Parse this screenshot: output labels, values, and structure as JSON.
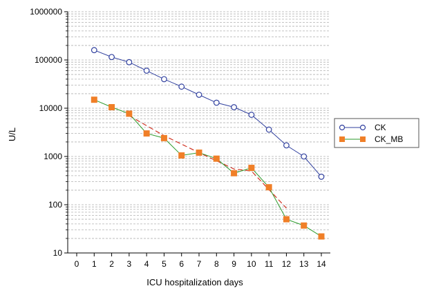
{
  "chart_data": {
    "type": "line",
    "xlabel": "ICU hospitalization days",
    "ylabel": "U/L",
    "yscale": "log",
    "xlim": [
      0,
      14
    ],
    "ylim": [
      10,
      1000000
    ],
    "x_ticks": [
      "0",
      "1",
      "2",
      "3",
      "4",
      "5",
      "6",
      "7",
      "8",
      "9",
      "10",
      "11",
      "12",
      "13",
      "14"
    ],
    "y_ticks": [
      "10",
      "100",
      "1000",
      "10000",
      "100000",
      "1000000"
    ],
    "grid": "dashed horizontal gridlines at log minor ticks",
    "legend_position": "right",
    "series": [
      {
        "name": "CK",
        "color": "#2f3f9e",
        "marker": "circle",
        "x": [
          1,
          2,
          3,
          4,
          5,
          6,
          7,
          8,
          9,
          10,
          11,
          12,
          13,
          14
        ],
        "values": [
          160000,
          115000,
          90000,
          60000,
          40000,
          28000,
          19000,
          13000,
          10500,
          7300,
          3600,
          1700,
          1000,
          380
        ]
      },
      {
        "name": "CK_MB",
        "color": "#2a9a2a",
        "marker_color": "#f07f28",
        "marker": "square",
        "x": [
          1,
          2,
          3,
          4,
          5,
          6,
          7,
          8,
          9,
          10,
          11,
          12,
          13,
          14
        ],
        "values": [
          15000,
          10500,
          7700,
          3000,
          2400,
          1050,
          1200,
          900,
          450,
          580,
          230,
          50,
          37,
          22
        ]
      }
    ],
    "trend_lines": [
      {
        "color": "#d03020",
        "style": "dashed",
        "x": [
          3,
          5,
          7,
          9,
          10,
          12
        ],
        "values": [
          7000,
          2700,
          1200,
          550,
          500,
          85
        ]
      }
    ]
  }
}
